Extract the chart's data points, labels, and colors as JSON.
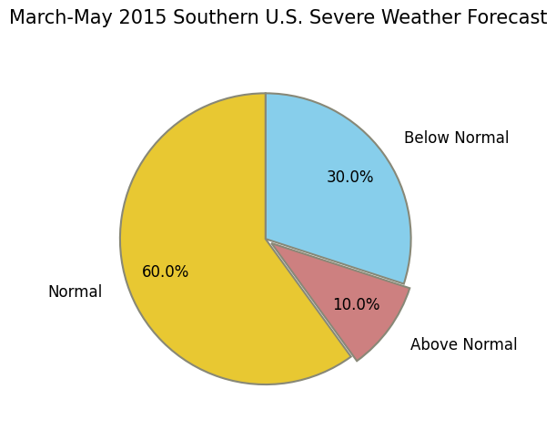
{
  "title": "March-May 2015 Southern U.S. Severe Weather Forecast",
  "slices": [
    30.0,
    10.0,
    60.0
  ],
  "labels": [
    "Below Normal",
    "Above Normal",
    "Normal"
  ],
  "colors": [
    "#87CEEB",
    "#CD8080",
    "#E8C832"
  ],
  "edge_color": "#888877",
  "edge_width": 1.5,
  "explode": [
    0.0,
    0.05,
    0.0
  ],
  "startangle": 90,
  "title_fontsize": 15,
  "label_fontsize": 12,
  "pct_fontsize": 12,
  "background_color": "#ffffff",
  "counterclock": false,
  "pctdistance": 0.72,
  "labeldistance": 1.18
}
